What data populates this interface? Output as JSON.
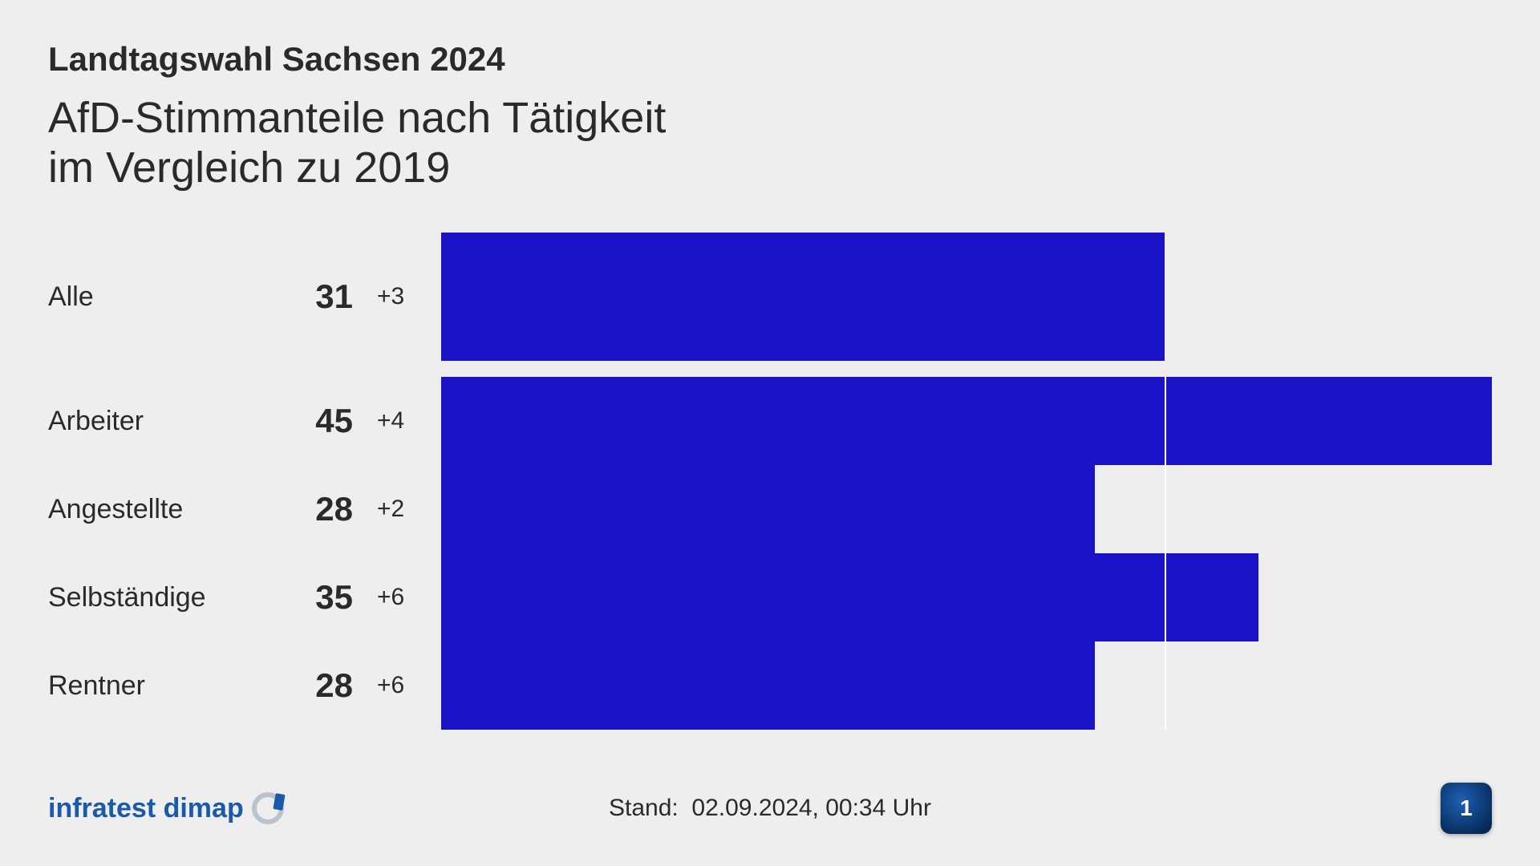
{
  "supertitle": "Landtagswahl Sachsen 2024",
  "title_line1": "AfD-Stimmanteile nach Tätigkeit",
  "title_line2": "im Vergleich zu 2019",
  "chart": {
    "type": "bar-horizontal",
    "bar_color": "#1a13c8",
    "background_color": "#eeeeee",
    "reference_line_color": "#ffffff",
    "reference_value": 31,
    "max_value": 45,
    "label_fontsize": 34,
    "value_fontsize": 42,
    "delta_fontsize": 30,
    "rows": [
      {
        "label": "Alle",
        "value": 31,
        "delta": "+3",
        "first": true
      },
      {
        "label": "Arbeiter",
        "value": 45,
        "delta": "+4"
      },
      {
        "label": "Angestellte",
        "value": 28,
        "delta": "+2"
      },
      {
        "label": "Selbständige",
        "value": 35,
        "delta": "+6"
      },
      {
        "label": "Rentner",
        "value": 28,
        "delta": "+6"
      }
    ]
  },
  "footer": {
    "source": "infratest dimap",
    "timestamp_label": "Stand:",
    "timestamp_value": "02.09.2024, 00:34 Uhr",
    "channel_glyph": "1"
  }
}
